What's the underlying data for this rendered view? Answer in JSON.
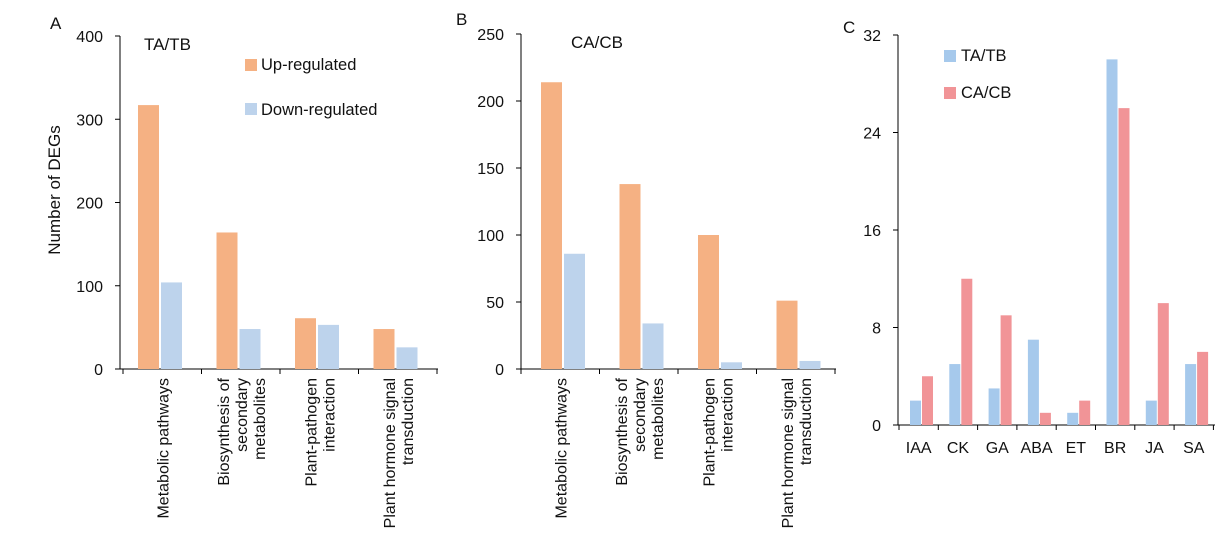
{
  "colors": {
    "up": "#F5B183",
    "down": "#BDD3EC",
    "ta_tb": "#A6C9EC",
    "ca_cb": "#F19497"
  },
  "chart_data": [
    {
      "type": "bar",
      "panel_label": "A",
      "title": "TA/TB",
      "ylabel": "Number of DEGs",
      "xlabel": "",
      "ylim": [
        0,
        400
      ],
      "yticks": [
        0,
        100,
        200,
        300,
        400
      ],
      "categories": [
        [
          "Metabolic pathways"
        ],
        [
          "Biosynthesis of",
          "secondary",
          "metabolites"
        ],
        [
          "Plant-pathogen",
          "interaction"
        ],
        [
          "Plant hormone signal",
          "transduction"
        ]
      ],
      "series": [
        {
          "name": "Up-regulated",
          "values": [
            317,
            164,
            61,
            48
          ]
        },
        {
          "name": "Down-regulated",
          "values": [
            104,
            48,
            53,
            26
          ]
        }
      ],
      "legend_position": "top-center"
    },
    {
      "type": "bar",
      "panel_label": "B",
      "title": "CA/CB",
      "ylabel": "",
      "xlabel": "",
      "ylim": [
        0,
        250
      ],
      "yticks": [
        0,
        50,
        100,
        150,
        200,
        250
      ],
      "categories": [
        [
          "Metabolic pathways"
        ],
        [
          "Biosynthesis of",
          "secondary",
          "metabolites"
        ],
        [
          "Plant-pathogen",
          "interaction"
        ],
        [
          "Plant hormone signal",
          "transduction"
        ]
      ],
      "series": [
        {
          "name": "Up-regulated",
          "values": [
            214,
            138,
            100,
            51
          ]
        },
        {
          "name": "Down-regulated",
          "values": [
            86,
            34,
            5,
            6
          ]
        }
      ]
    },
    {
      "type": "bar",
      "panel_label": "C",
      "title": "",
      "ylabel": "",
      "xlabel": "",
      "ylim": [
        0,
        32
      ],
      "yticks": [
        0,
        8,
        16,
        24,
        32
      ],
      "categories": [
        [
          "IAA"
        ],
        [
          "CK"
        ],
        [
          "GA"
        ],
        [
          "ABA"
        ],
        [
          "ET"
        ],
        [
          "BR"
        ],
        [
          "JA"
        ],
        [
          "SA"
        ]
      ],
      "series": [
        {
          "name": "TA/TB",
          "values": [
            2,
            5,
            3,
            7,
            1,
            30,
            2,
            5
          ]
        },
        {
          "name": "CA/CB",
          "values": [
            4,
            12,
            9,
            1,
            2,
            26,
            10,
            6
          ]
        }
      ],
      "legend_position": "top-left"
    }
  ]
}
